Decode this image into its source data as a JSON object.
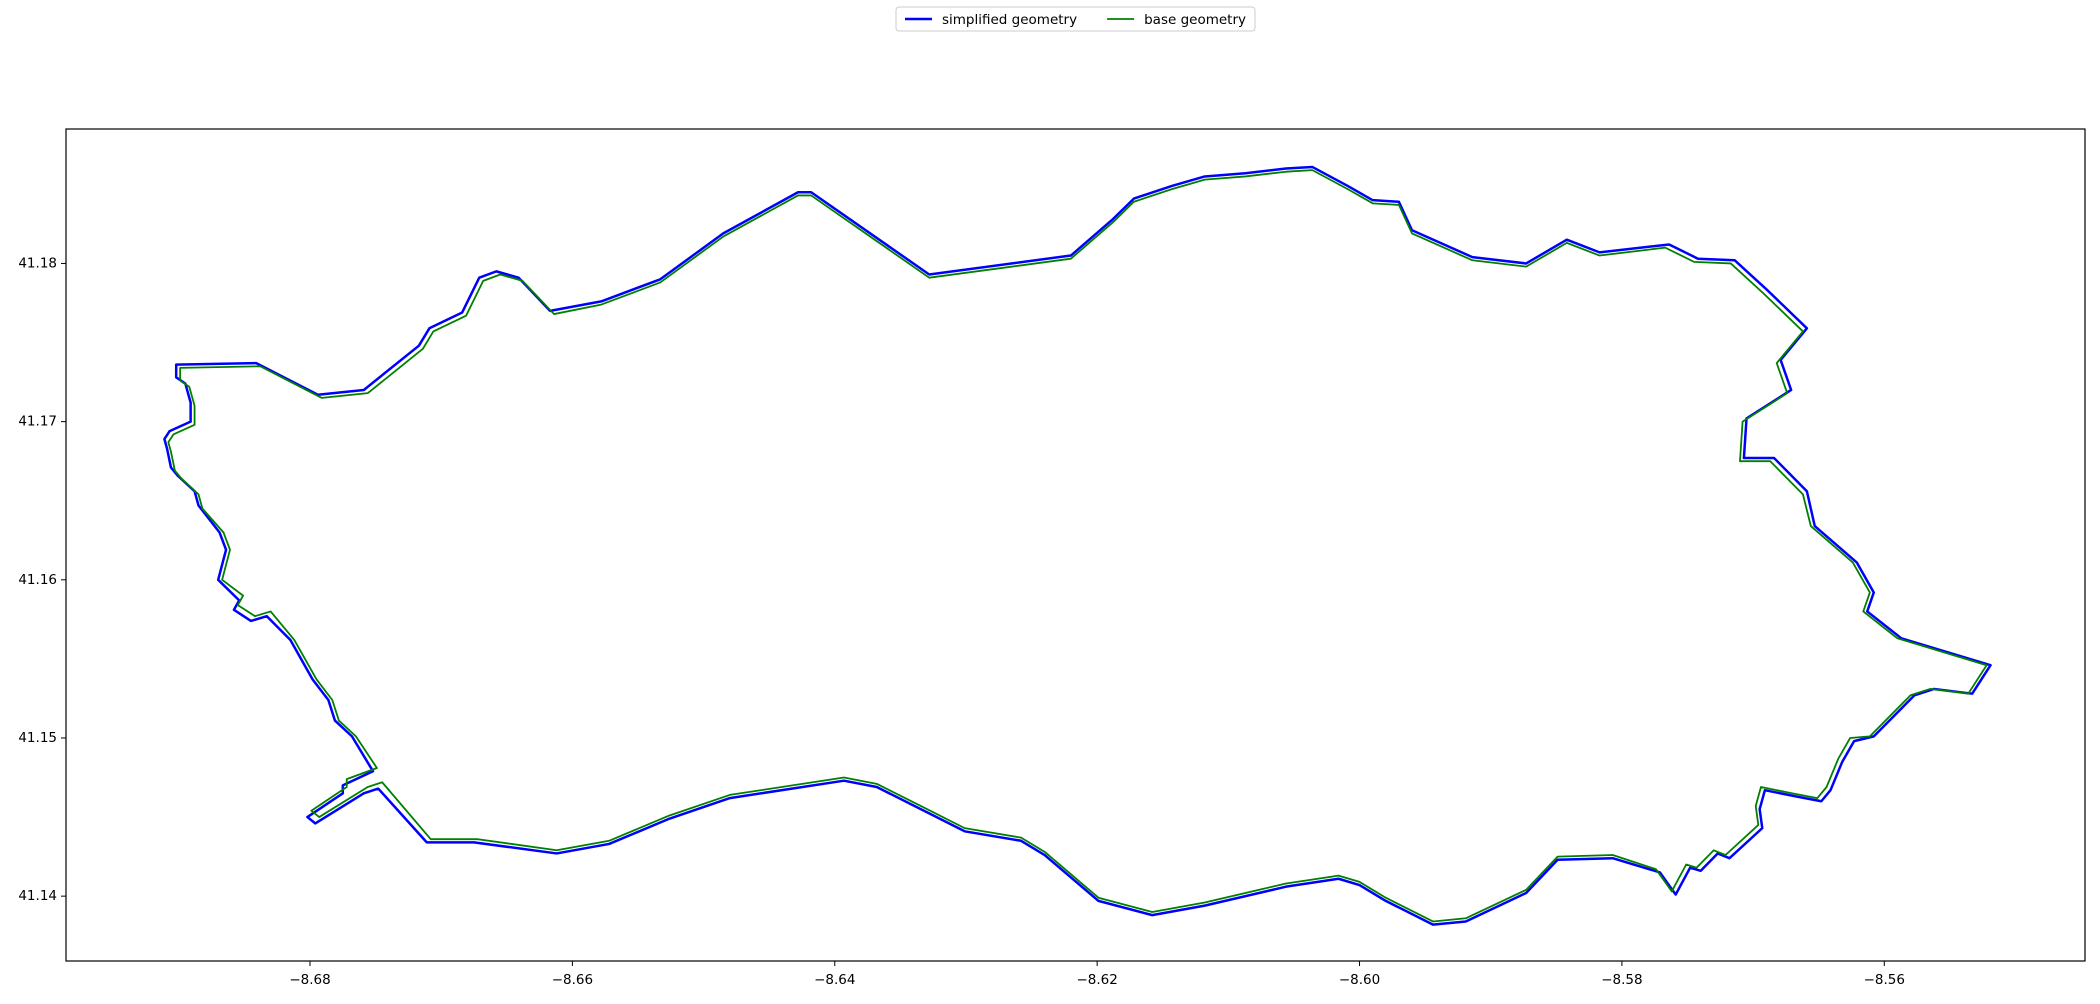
{
  "chart_data": {
    "type": "line",
    "xlim": [
      -8.6986,
      -8.5447
    ],
    "ylim": [
      41.1359,
      41.1885
    ],
    "xticks": [
      {
        "value": -8.68,
        "label": "−8.68"
      },
      {
        "value": -8.66,
        "label": "−8.66"
      },
      {
        "value": -8.64,
        "label": "−8.64"
      },
      {
        "value": -8.62,
        "label": "−8.62"
      },
      {
        "value": -8.6,
        "label": "−8.60"
      },
      {
        "value": -8.58,
        "label": "−8.58"
      },
      {
        "value": -8.56,
        "label": "−8.56"
      }
    ],
    "yticks": [
      41.14,
      41.15,
      41.16,
      41.17,
      41.18
    ],
    "grid": false,
    "legend": "top-center",
    "series": [
      {
        "name": "simplified geometry",
        "color": "#0000ff",
        "linewidth": 2.5,
        "x": [
          -8.6902,
          -8.6841,
          -8.6794,
          -8.6759,
          -8.6717,
          -8.6709,
          -8.6684,
          -8.6671,
          -8.6658,
          -8.6641,
          -8.6617,
          -8.6578,
          -8.6533,
          -8.6485,
          -8.6428,
          -8.6418,
          -8.6328,
          -8.622,
          -8.6188,
          -8.6172,
          -8.6143,
          -8.6118,
          -8.6087,
          -8.6056,
          -8.6036,
          -8.6009,
          -8.599,
          -8.597,
          -8.596,
          -8.5914,
          -8.5873,
          -8.5842,
          -8.5817,
          -8.5764,
          -8.5742,
          -8.5714,
          -8.5689,
          -8.5659,
          -8.5679,
          -8.5671,
          -8.5705,
          -8.5707,
          -8.5684,
          -8.5659,
          -8.5653,
          -8.5621,
          -8.5608,
          -8.5613,
          -8.5587,
          -8.5519,
          -8.5533,
          -8.5562,
          -8.5577,
          -8.5608,
          -8.5623,
          -8.5632,
          -8.5641,
          -8.5648,
          -8.5667,
          -8.5691,
          -8.5695,
          -8.5693,
          -8.5718,
          -8.5727,
          -8.574,
          -8.5748,
          -8.5759,
          -8.5771,
          -8.5807,
          -8.5849,
          -8.5873,
          -8.5919,
          -8.5944,
          -8.598,
          -8.6,
          -8.6016,
          -8.6056,
          -8.6118,
          -8.6158,
          -8.6199,
          -8.624,
          -8.6258,
          -8.6301,
          -8.6332,
          -8.6368,
          -8.6393,
          -8.648,
          -8.6526,
          -8.6572,
          -8.6612,
          -8.6675,
          -8.6711,
          -8.6748,
          -8.6759,
          -8.6796,
          -8.6802,
          -8.6775,
          -8.6775,
          -8.6752,
          -8.6768,
          -8.6781,
          -8.6786,
          -8.6798,
          -8.6815,
          -8.6833,
          -8.6845,
          -8.6858,
          -8.6854,
          -8.687,
          -8.6864,
          -8.6869,
          -8.6885,
          -8.6888,
          -8.6901,
          -8.6906,
          -8.6909,
          -8.6911,
          -8.6907,
          -8.6891,
          -8.6891,
          -8.6895,
          -8.6902,
          -8.6902
        ],
        "values": [
          41.1736,
          41.1737,
          41.1717,
          41.172,
          41.1748,
          41.1759,
          41.1769,
          41.1791,
          41.1795,
          41.1791,
          41.177,
          41.1776,
          41.179,
          41.1819,
          41.1845,
          41.1845,
          41.1793,
          41.1805,
          41.1828,
          41.1841,
          41.1849,
          41.1855,
          41.1857,
          41.186,
          41.1861,
          41.1849,
          41.184,
          41.1839,
          41.1821,
          41.1804,
          41.18,
          41.1815,
          41.1807,
          41.1812,
          41.1803,
          41.1802,
          41.1783,
          41.1759,
          41.1739,
          41.172,
          41.1702,
          41.1677,
          41.1677,
          41.1656,
          41.1634,
          41.1611,
          41.1592,
          41.158,
          41.1563,
          41.1546,
          41.1528,
          41.1531,
          41.1527,
          41.1501,
          41.1498,
          41.1485,
          41.1467,
          41.146,
          41.1463,
          41.1467,
          41.1455,
          41.1443,
          41.1424,
          41.1427,
          41.1416,
          41.1418,
          41.1401,
          41.1415,
          41.1424,
          41.1423,
          41.1402,
          41.1384,
          41.1382,
          41.1397,
          41.1407,
          41.1411,
          41.1406,
          41.1394,
          41.1388,
          41.1397,
          41.1426,
          41.1435,
          41.1441,
          41.1454,
          41.1469,
          41.1473,
          41.1462,
          41.1449,
          41.1433,
          41.1427,
          41.1434,
          41.1434,
          41.1468,
          41.1465,
          41.1446,
          41.145,
          41.1465,
          41.147,
          41.1479,
          41.1501,
          41.1511,
          41.1524,
          41.1537,
          41.1562,
          41.1577,
          41.1574,
          41.1581,
          41.1587,
          41.16,
          41.1619,
          41.163,
          41.1647,
          41.1656,
          41.1666,
          41.1671,
          41.1683,
          41.1689,
          41.1694,
          41.17,
          41.1712,
          41.1724,
          41.1728,
          41.1736
        ]
      },
      {
        "name": "base geometry",
        "color": "#008000",
        "linewidth": 1.8,
        "x": [
          -8.6899,
          -8.6838,
          -8.6791,
          -8.6756,
          -8.6714,
          -8.6706,
          -8.6681,
          -8.6668,
          -8.6655,
          -8.6638,
          -8.6614,
          -8.6578,
          -8.6533,
          -8.6485,
          -8.6428,
          -8.6418,
          -8.6328,
          -8.622,
          -8.6188,
          -8.6172,
          -8.6143,
          -8.6118,
          -8.6087,
          -8.6056,
          -8.6036,
          -8.6009,
          -8.599,
          -8.597,
          -8.596,
          -8.5914,
          -8.5873,
          -8.5842,
          -8.5817,
          -8.5767,
          -8.5745,
          -8.5717,
          -8.5692,
          -8.5662,
          -8.5682,
          -8.5674,
          -8.5708,
          -8.571,
          -8.5687,
          -8.5662,
          -8.5656,
          -8.5624,
          -8.5611,
          -8.5616,
          -8.559,
          -8.5522,
          -8.5536,
          -8.5565,
          -8.558,
          -8.5611,
          -8.5626,
          -8.5635,
          -8.5644,
          -8.5651,
          -8.567,
          -8.5694,
          -8.5698,
          -8.5696,
          -8.5721,
          -8.573,
          -8.5743,
          -8.5751,
          -8.5762,
          -8.5774,
          -8.5807,
          -8.5849,
          -8.5873,
          -8.5919,
          -8.5944,
          -8.598,
          -8.6,
          -8.6016,
          -8.6056,
          -8.6118,
          -8.6158,
          -8.6199,
          -8.624,
          -8.6258,
          -8.6301,
          -8.6332,
          -8.6368,
          -8.6393,
          -8.648,
          -8.6526,
          -8.6572,
          -8.6612,
          -8.6672,
          -8.6708,
          -8.6745,
          -8.6756,
          -8.6793,
          -8.6799,
          -8.6772,
          -8.6772,
          -8.6749,
          -8.6765,
          -8.6778,
          -8.6783,
          -8.6795,
          -8.6812,
          -8.683,
          -8.6842,
          -8.6855,
          -8.6851,
          -8.6867,
          -8.6861,
          -8.6866,
          -8.6882,
          -8.6885,
          -8.6898,
          -8.6903,
          -8.6906,
          -8.6908,
          -8.6904,
          -8.6888,
          -8.6888,
          -8.6892,
          -8.6899,
          -8.6899
        ],
        "values": [
          41.1734,
          41.1735,
          41.1715,
          41.1718,
          41.1746,
          41.1757,
          41.1767,
          41.1789,
          41.1793,
          41.1789,
          41.1768,
          41.1774,
          41.1788,
          41.1817,
          41.1843,
          41.1843,
          41.1791,
          41.1803,
          41.1826,
          41.1839,
          41.1847,
          41.1853,
          41.1855,
          41.1858,
          41.1859,
          41.1847,
          41.1838,
          41.1837,
          41.1819,
          41.1802,
          41.1798,
          41.1813,
          41.1805,
          41.181,
          41.1801,
          41.18,
          41.1781,
          41.1757,
          41.1737,
          41.1718,
          41.17,
          41.1675,
          41.1675,
          41.1654,
          41.1634,
          41.1611,
          41.1592,
          41.158,
          41.1563,
          41.1546,
          41.1528,
          41.1531,
          41.1527,
          41.1501,
          41.15,
          41.1487,
          41.1469,
          41.1462,
          41.1465,
          41.1469,
          41.1457,
          41.1445,
          41.1426,
          41.1429,
          41.1418,
          41.142,
          41.1403,
          41.1417,
          41.1426,
          41.1425,
          41.1404,
          41.1386,
          41.1384,
          41.1399,
          41.1409,
          41.1413,
          41.1408,
          41.1396,
          41.139,
          41.1399,
          41.1428,
          41.1437,
          41.1443,
          41.1456,
          41.1471,
          41.1475,
          41.1464,
          41.1451,
          41.1435,
          41.1429,
          41.1436,
          41.1436,
          41.1472,
          41.1469,
          41.145,
          41.1454,
          41.1469,
          41.1474,
          41.1481,
          41.1501,
          41.1511,
          41.1524,
          41.1537,
          41.1562,
          41.158,
          41.1577,
          41.1584,
          41.159,
          41.16,
          41.1619,
          41.163,
          41.1645,
          41.1654,
          41.1664,
          41.1669,
          41.1681,
          41.1687,
          41.1692,
          41.1698,
          41.171,
          41.1722,
          41.1726,
          41.1734
        ]
      }
    ]
  }
}
